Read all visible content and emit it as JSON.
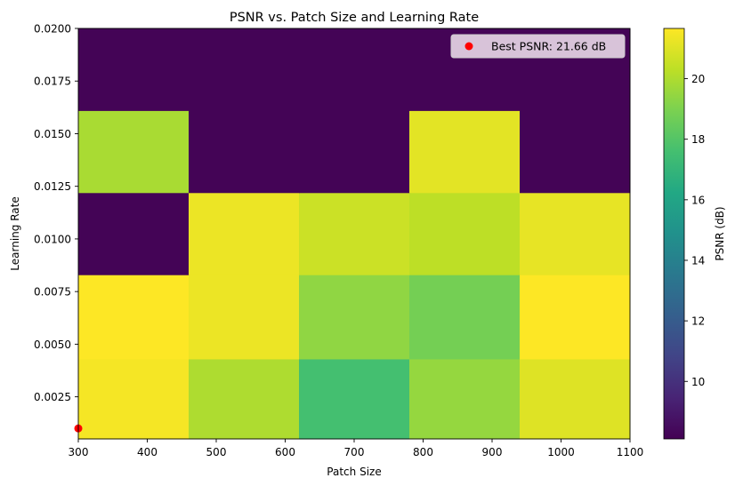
{
  "chart_data": {
    "type": "heatmap",
    "title": "PSNR vs. Patch Size and Learning Rate",
    "xlabel": "Patch Size",
    "ylabel": "Learning Rate",
    "xlim": [
      300,
      1100
    ],
    "ylim": [
      0.0005,
      0.02
    ],
    "x_ticks": [
      300,
      400,
      500,
      600,
      700,
      800,
      900,
      1000,
      1100
    ],
    "x_tick_labels": [
      "300",
      "400",
      "500",
      "600",
      "700",
      "800",
      "900",
      "1000",
      "1100"
    ],
    "y_ticks": [
      0.0025,
      0.005,
      0.0075,
      0.01,
      0.0125,
      0.015,
      0.0175,
      0.02
    ],
    "y_tick_labels": [
      "0.0025",
      "0.0050",
      "0.0075",
      "0.0100",
      "0.0125",
      "0.0150",
      "0.0175",
      "0.0200"
    ],
    "x_edges": [
      300,
      460,
      620,
      780,
      940,
      1100
    ],
    "y_edges": [
      0.0005,
      0.0043,
      0.0083,
      0.0122,
      0.0161,
      0.02
    ],
    "rows_bottom_to_top": [
      [
        21.5,
        20.0,
        17.6,
        19.5,
        21.0
      ],
      [
        21.66,
        21.3,
        19.4,
        18.8,
        21.66
      ],
      [
        8.2,
        21.3,
        20.6,
        20.3,
        21.2
      ],
      [
        19.9,
        8.2,
        8.2,
        21.1,
        8.2
      ],
      [
        8.2,
        8.2,
        8.2,
        8.2,
        8.2
      ]
    ],
    "colormap": "viridis",
    "colorbar": {
      "label": "PSNR (dB)",
      "min": 8.1,
      "max": 21.66,
      "ticks": [
        10,
        12,
        14,
        16,
        18,
        20
      ],
      "tick_labels": [
        "10",
        "12",
        "14",
        "16",
        "18",
        "20"
      ]
    },
    "best_point": {
      "x": 300,
      "y": 0.001,
      "color": "#ff0000"
    },
    "legend": {
      "label": "Best PSNR: 21.66 dB",
      "placement": "upper right"
    }
  }
}
